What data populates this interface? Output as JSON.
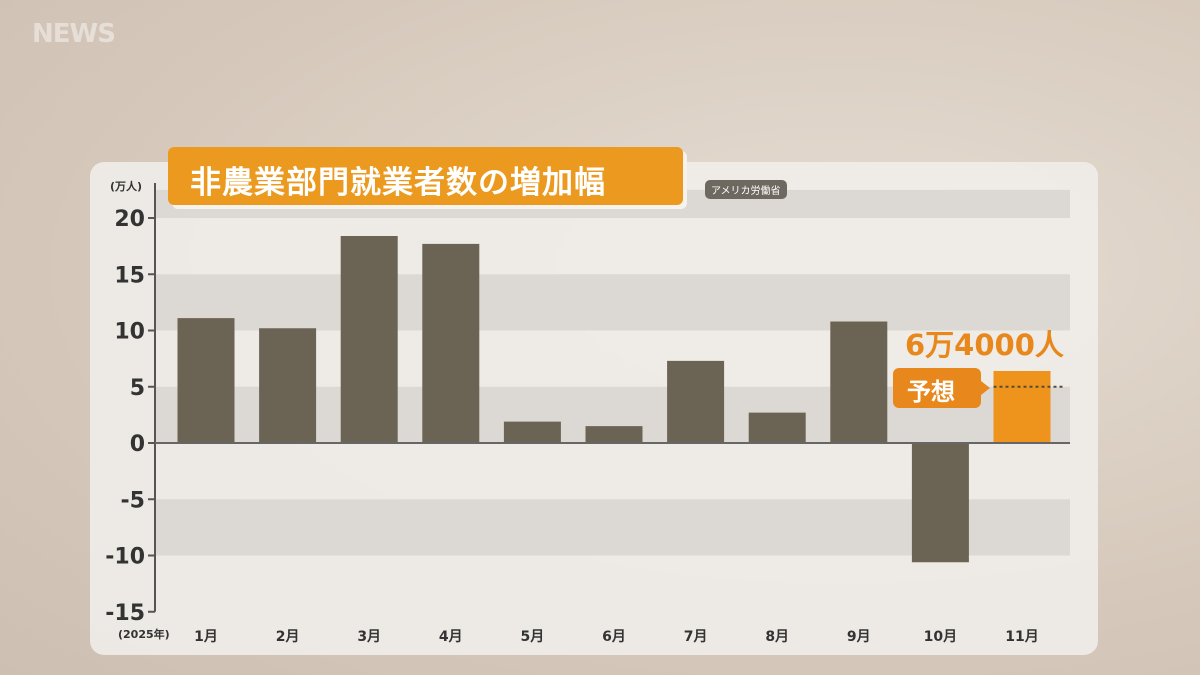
{
  "logo": "NEWS",
  "chart_data": {
    "type": "bar",
    "title": "非農業部門就業者数の増加幅",
    "source": "アメリカ労働省",
    "ylabel": "(万人)",
    "xlabel_prefix": "(2025年)",
    "categories": [
      "1月",
      "2月",
      "3月",
      "4月",
      "5月",
      "6月",
      "7月",
      "8月",
      "9月",
      "10月",
      "11月"
    ],
    "values": [
      11.1,
      10.2,
      18.4,
      17.7,
      1.9,
      1.5,
      7.3,
      2.7,
      10.8,
      -10.6,
      6.4
    ],
    "ylim": [
      -15,
      20
    ],
    "yticks": [
      "20",
      "15",
      "10",
      "5",
      "0",
      "-5",
      "-10",
      "-15"
    ],
    "forecast_index": 10,
    "forecast_label": "予想",
    "forecast_value_label": "6万4000人",
    "colors": {
      "actual": "#6b6354",
      "forecast": "#ee931c",
      "title_bg": "#eb9a1f"
    },
    "grid": "alternating bands"
  }
}
